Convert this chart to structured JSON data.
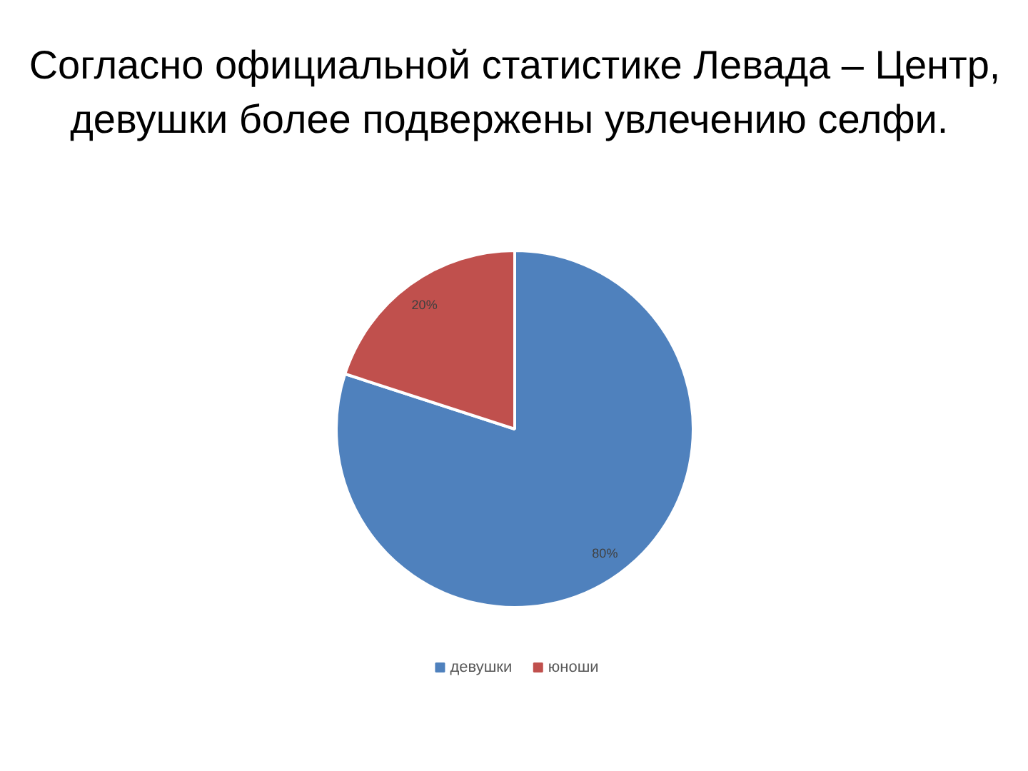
{
  "chart_data": {
    "type": "pie",
    "title": "Согласно официальной статистике Левада – Центр,\nдевушки более подвержены  увлечению селфи.",
    "categories": [
      "девушки",
      "юноши"
    ],
    "values": [
      80,
      20
    ],
    "colors": [
      "#4f81bd",
      "#c0504d"
    ],
    "value_labels": [
      "80%",
      "20%"
    ],
    "legend": "bottom"
  }
}
